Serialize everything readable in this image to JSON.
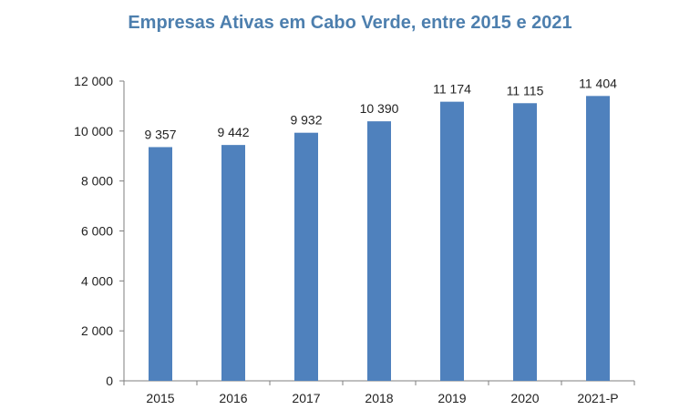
{
  "chart_data": {
    "type": "bar",
    "title": "Empresas Ativas em Cabo Verde, entre 2015  e 2021",
    "categories": [
      "2015",
      "2016",
      "2017",
      "2018",
      "2019",
      "2020",
      "2021-P"
    ],
    "values": [
      9357,
      9442,
      9932,
      10390,
      11174,
      11115,
      11404
    ],
    "data_labels": [
      "9 357",
      "9 442",
      "9 932",
      "10 390",
      "11 174",
      "11 115",
      "11 404"
    ],
    "ylim": [
      0,
      12000
    ],
    "yticks": [
      0,
      2000,
      4000,
      6000,
      8000,
      10000,
      12000
    ],
    "ytick_labels": [
      "0",
      "2 000",
      "4 000",
      "6 000",
      "8 000",
      "10 000",
      "12 000"
    ],
    "grid": false,
    "bar_color": "#4f81bd",
    "title_color": "#4d7fae"
  }
}
